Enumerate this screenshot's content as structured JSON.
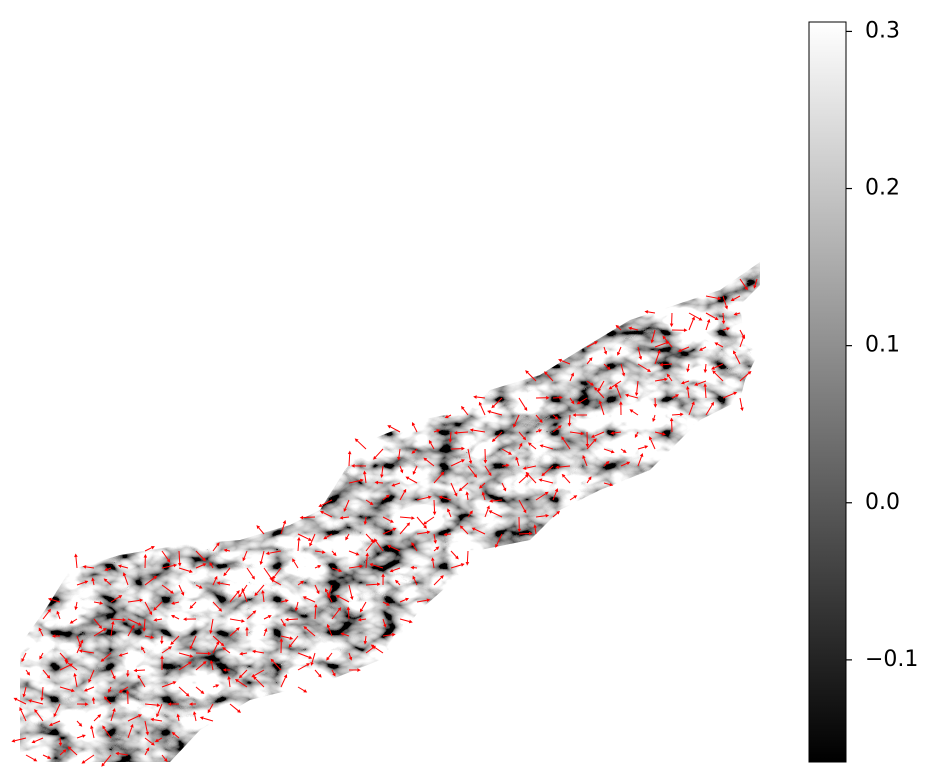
{
  "chart_data": {
    "type": "heatmap",
    "colormap": "gray",
    "arrow_color": "#ff0000",
    "colorbar": {
      "lim": [
        -0.165,
        0.306
      ],
      "ticks": [
        {
          "value": -0.1,
          "label": "−0.1"
        },
        {
          "value": 0,
          "label": "0.0"
        },
        0.1,
        0.2,
        0.3
      ]
    }
  }
}
